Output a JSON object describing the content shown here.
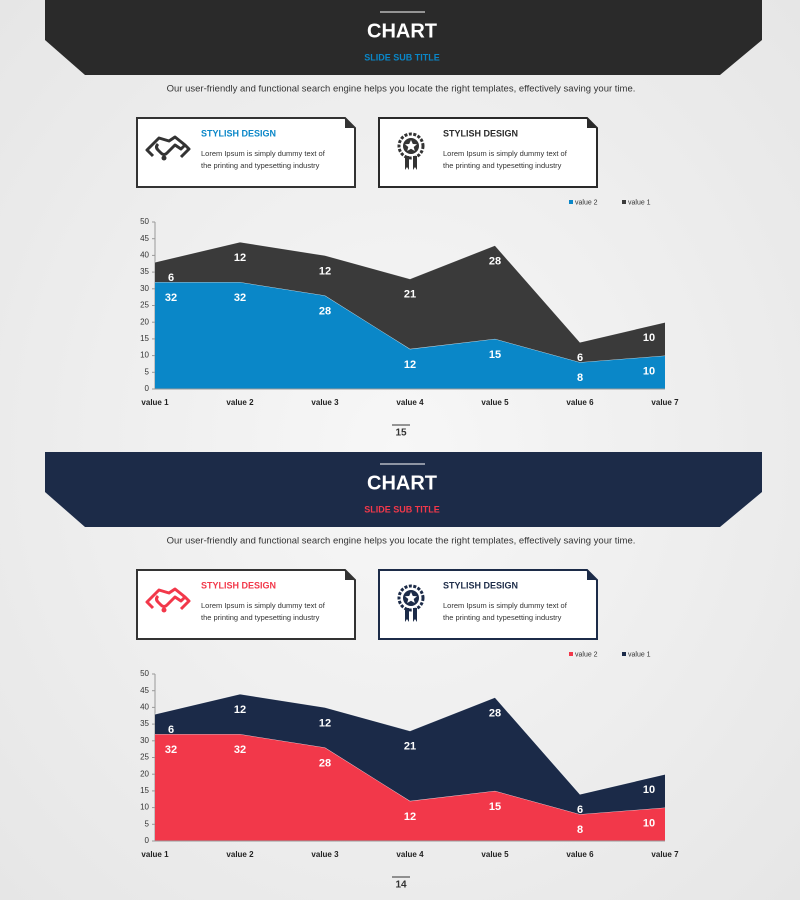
{
  "slides": [
    {
      "header": {
        "title": "CHART",
        "subtitle": "SLIDE SUB TITLE"
      },
      "description": "Our user-friendly and functional search engine helps you locate the right templates, effectively saving your time.",
      "cards": [
        {
          "title": "STYLISH DESIGN",
          "text_lines": [
            "Lorem Ipsum is simply dummy text of",
            "the printing and typesetting industry"
          ]
        },
        {
          "title": "STYLISH DESIGN",
          "text_lines": [
            "Lorem Ipsum is simply dummy text of",
            "the printing and typesetting industry"
          ]
        }
      ],
      "page_number": 15
    },
    {
      "header": {
        "title": "CHART",
        "subtitle": "SLIDE SUB TITLE"
      },
      "description": "Our user-friendly and functional search engine helps you locate the right templates, effectively saving your time.",
      "cards": [
        {
          "title": "STYLISH DESIGN",
          "text_lines": [
            "Lorem Ipsum is simply dummy text of",
            "the printing and typesetting industry"
          ]
        },
        {
          "title": "STYLISH DESIGN",
          "text_lines": [
            "Lorem Ipsum is simply dummy text of",
            "the printing and typesetting industry"
          ]
        }
      ],
      "page_number": 14
    }
  ],
  "chart_data": [
    {
      "type": "area",
      "stacked": true,
      "categories": [
        "value 1",
        "value 2",
        "value 3",
        "value 4",
        "value 5",
        "value 6",
        "value 7"
      ],
      "series": [
        {
          "name": "value 2",
          "color": "#0a87c8",
          "values": [
            32,
            32,
            28,
            12,
            15,
            8,
            10
          ]
        },
        {
          "name": "value 1",
          "color": "#3a3a3a",
          "values": [
            6,
            12,
            12,
            21,
            28,
            6,
            10
          ]
        }
      ],
      "ylim": [
        0,
        50
      ],
      "yticks": [
        0,
        5,
        10,
        15,
        20,
        25,
        30,
        35,
        40,
        45,
        50
      ],
      "legend": "top-right"
    },
    {
      "type": "area",
      "stacked": true,
      "categories": [
        "value 1",
        "value 2",
        "value 3",
        "value 4",
        "value 5",
        "value 6",
        "value 7"
      ],
      "series": [
        {
          "name": "value 2",
          "color": "#f2384a",
          "values": [
            32,
            32,
            28,
            12,
            15,
            8,
            10
          ]
        },
        {
          "name": "value 1",
          "color": "#1b2a48",
          "values": [
            6,
            12,
            12,
            21,
            28,
            6,
            10
          ]
        }
      ],
      "ylim": [
        0,
        50
      ],
      "yticks": [
        0,
        5,
        10,
        15,
        20,
        25,
        30,
        35,
        40,
        45,
        50
      ],
      "legend": "top-right"
    }
  ]
}
